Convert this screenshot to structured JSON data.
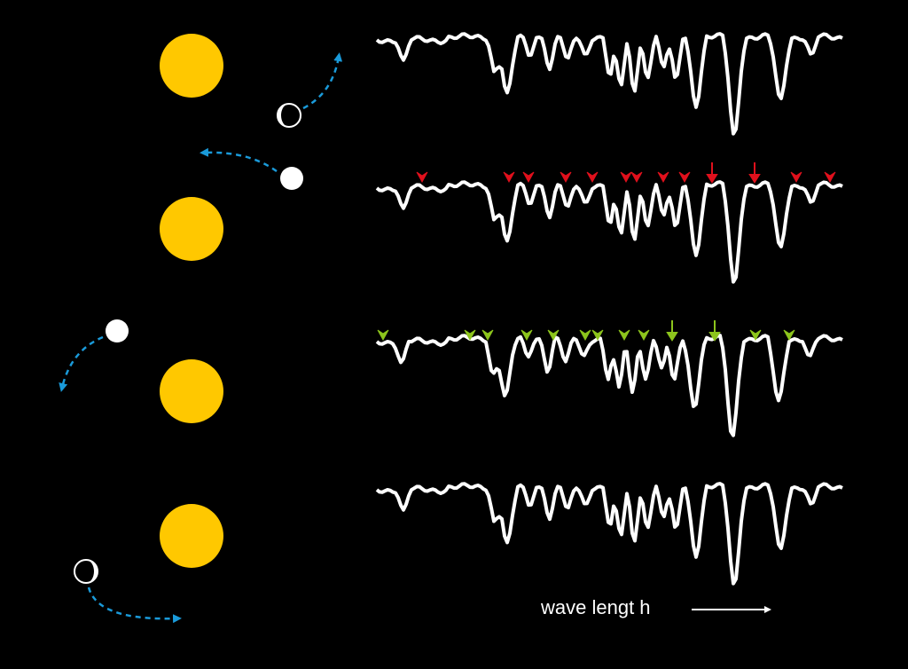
{
  "label": "wave lengt h"
}
